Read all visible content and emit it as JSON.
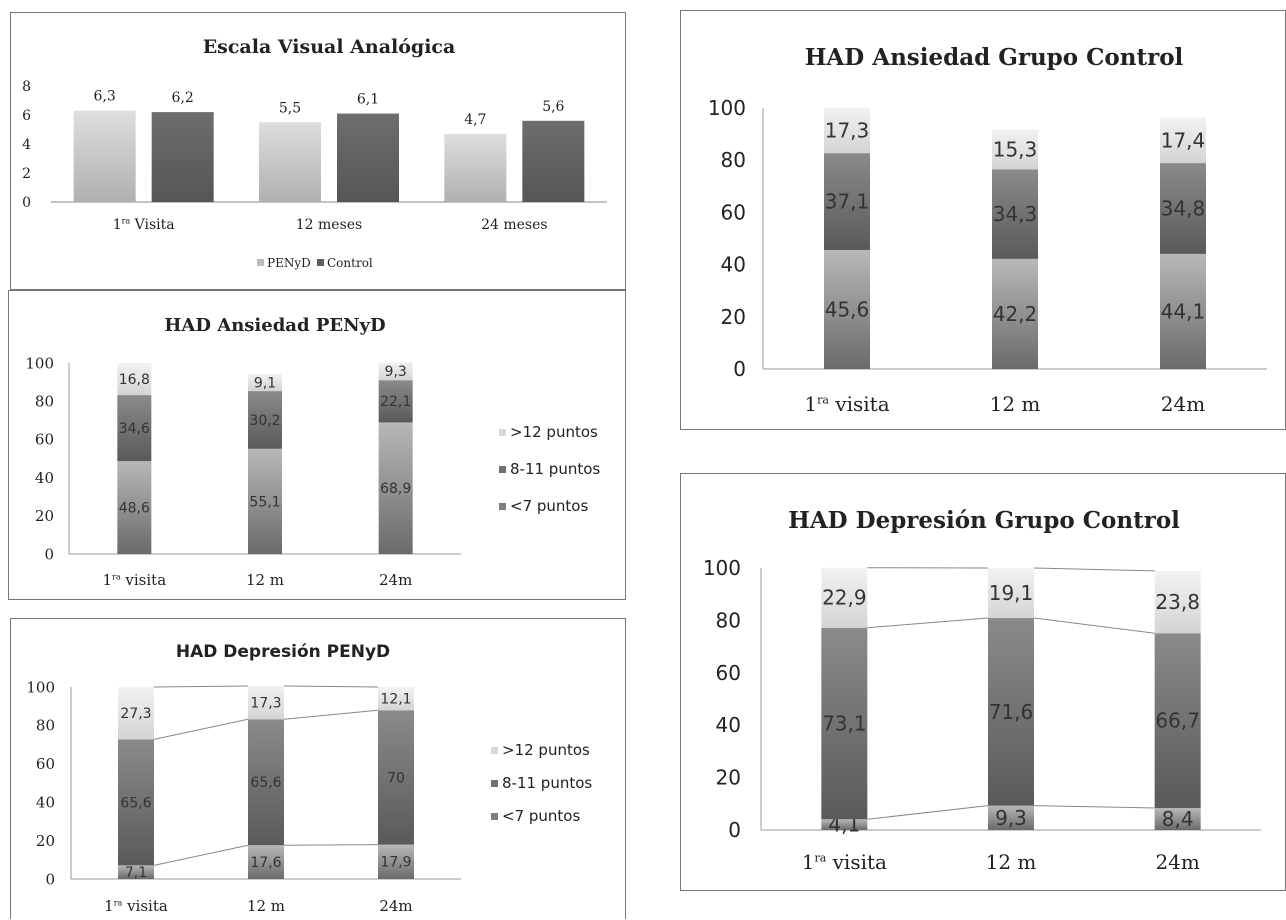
{
  "chart_data": [
    {
      "id": "eva",
      "type": "bar",
      "title": "Escala Visual Analógica",
      "categories": [
        "1ª Visita",
        "12 meses",
        "24 meses"
      ],
      "series": [
        {
          "name": "PENyD",
          "values": [
            6.3,
            5.5,
            4.7
          ],
          "labels": [
            "6,3",
            "5,5",
            "4,7"
          ],
          "color": "#c4c4c4"
        },
        {
          "name": "Control",
          "values": [
            6.2,
            6.1,
            5.6
          ],
          "labels": [
            "6,2",
            "6,1",
            "5,6"
          ],
          "color": "#5e5e5e"
        }
      ],
      "yticks": [
        "0",
        "2",
        "4",
        "6",
        "8"
      ],
      "ylim": [
        0,
        8
      ],
      "legend": "bottom"
    },
    {
      "id": "hap",
      "type": "bar",
      "stacked": true,
      "title": "HAD Ansiedad PENyD",
      "categories": [
        "1ª visita",
        "12 m",
        "24m"
      ],
      "series": [
        {
          "name": "<7 puntos",
          "values": [
            48.6,
            55.1,
            68.9
          ],
          "labels": [
            "48,6",
            "55,1",
            "68,9"
          ],
          "color": "#8a8a8a"
        },
        {
          "name": "8-11 puntos",
          "values": [
            34.6,
            30.2,
            22.1
          ],
          "labels": [
            "34,6",
            "30,2",
            "22,1"
          ],
          "color": "#6b6b6b"
        },
        {
          "name": ">12 puntos",
          "values": [
            16.8,
            9.1,
            9.3
          ],
          "labels": [
            "16,8",
            "9,1",
            "9,3"
          ],
          "color": "#dcdcdc"
        }
      ],
      "yticks": [
        "0",
        "20",
        "40",
        "60",
        "80",
        "100"
      ],
      "ylim": [
        0,
        100
      ],
      "legend": "right"
    },
    {
      "id": "hdp",
      "type": "bar",
      "stacked": true,
      "title": "HAD Depresión PENyD",
      "categories": [
        "1ª visita",
        "12 m",
        "24m"
      ],
      "series": [
        {
          "name": "<7 puntos",
          "values": [
            7.1,
            17.6,
            17.9
          ],
          "labels": [
            "7,1",
            "17,6",
            "17,9"
          ],
          "color": "#8a8a8a"
        },
        {
          "name": "8-11 puntos",
          "values": [
            65.6,
            65.6,
            70
          ],
          "labels": [
            "65,6",
            "65,6",
            "70"
          ],
          "color": "#6b6b6b"
        },
        {
          "name": ">12 puntos",
          "values": [
            27.3,
            17.3,
            12.1
          ],
          "labels": [
            "27,3",
            "17,3",
            "12,1"
          ],
          "color": "#dcdcdc"
        }
      ],
      "yticks": [
        "0",
        "20",
        "40",
        "60",
        "80",
        "100"
      ],
      "ylim": [
        0,
        100
      ],
      "legend": "right"
    },
    {
      "id": "hagc",
      "type": "bar",
      "stacked": true,
      "title": "HAD Ansiedad Grupo Control",
      "categories": [
        "1ª visita",
        "12 m",
        "24m"
      ],
      "series": [
        {
          "name": "<7 puntos",
          "values": [
            45.6,
            42.2,
            44.1
          ],
          "labels": [
            "45,6",
            "42,2",
            "44,1"
          ],
          "color": "#8a8a8a"
        },
        {
          "name": "8-11 puntos",
          "values": [
            37.1,
            34.3,
            34.8
          ],
          "labels": [
            "37,1",
            "34,3",
            "34,8"
          ],
          "color": "#6b6b6b"
        },
        {
          "name": ">12 puntos",
          "values": [
            17.3,
            15.3,
            17.4
          ],
          "labels": [
            "17,3",
            "15,3",
            "17,4"
          ],
          "color": "#dcdcdc"
        }
      ],
      "yticks": [
        "0",
        "20",
        "40",
        "60",
        "80",
        "100"
      ],
      "ylim": [
        0,
        100
      ]
    },
    {
      "id": "hdgc",
      "type": "bar",
      "stacked": true,
      "title": "HAD Depresión Grupo Control",
      "categories": [
        "1ª visita",
        "12 m",
        "24m"
      ],
      "series": [
        {
          "name": "<7 puntos",
          "values": [
            4.1,
            9.3,
            8.4
          ],
          "labels": [
            "4,1",
            "9,3",
            "8,4"
          ],
          "color": "#8a8a8a"
        },
        {
          "name": "8-11 puntos",
          "values": [
            73.1,
            71.6,
            66.7
          ],
          "labels": [
            "73,1",
            "71,6",
            "66,7"
          ],
          "color": "#6b6b6b"
        },
        {
          "name": ">12 puntos",
          "values": [
            22.9,
            19.1,
            23.8
          ],
          "labels": [
            "22,9",
            "19,1",
            "23,8"
          ],
          "color": "#dcdcdc"
        }
      ],
      "yticks": [
        "0",
        "20",
        "40",
        "60",
        "80",
        "100"
      ],
      "ylim": [
        0,
        100
      ]
    }
  ]
}
